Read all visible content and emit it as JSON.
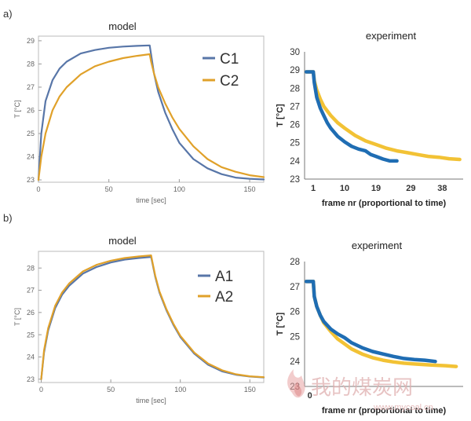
{
  "figure": {
    "panel_a_label": "a)",
    "panel_b_label": "b)",
    "watermark_text": "我的煤炭网",
    "watermark_url": "www.mycoal.cn"
  },
  "colors": {
    "blue_model": "#5876a8",
    "orange_model": "#e0a12a",
    "blue_exp": "#1f6db3",
    "orange_exp": "#f2c235",
    "axis": "#9a9a9a",
    "text": "#333333"
  },
  "chart_data": [
    {
      "id": "a_model",
      "type": "line",
      "title": "model",
      "xlabel": "time [sec]",
      "ylabel": "T [°C]",
      "xlim": [
        0,
        160
      ],
      "ylim": [
        22.9,
        29.2
      ],
      "xticks": [
        0,
        50,
        100,
        150
      ],
      "yticks": [
        23,
        24,
        25,
        26,
        27,
        28,
        29
      ],
      "series": [
        {
          "name": "C1",
          "color": "blue_model",
          "x": [
            0,
            2,
            5,
            10,
            15,
            20,
            30,
            40,
            50,
            60,
            70,
            79,
            80,
            82,
            85,
            90,
            95,
            100,
            110,
            120,
            130,
            140,
            150,
            160
          ],
          "y": [
            23.0,
            25.0,
            26.4,
            27.3,
            27.8,
            28.1,
            28.45,
            28.6,
            28.7,
            28.75,
            28.78,
            28.8,
            28.4,
            27.6,
            26.8,
            25.9,
            25.2,
            24.6,
            23.9,
            23.5,
            23.25,
            23.1,
            23.05,
            23.02
          ]
        },
        {
          "name": "C2",
          "color": "orange_model",
          "x": [
            0,
            2,
            5,
            10,
            15,
            20,
            30,
            40,
            50,
            60,
            70,
            79,
            80,
            82,
            85,
            90,
            95,
            100,
            110,
            120,
            130,
            140,
            150,
            160
          ],
          "y": [
            23.0,
            24.0,
            25.0,
            26.0,
            26.6,
            27.0,
            27.55,
            27.9,
            28.1,
            28.25,
            28.35,
            28.42,
            28.1,
            27.6,
            27.0,
            26.3,
            25.7,
            25.2,
            24.45,
            23.9,
            23.55,
            23.35,
            23.2,
            23.12
          ]
        }
      ]
    },
    {
      "id": "a_exp",
      "type": "line",
      "title": "experiment",
      "xlabel": "frame nr (proportional to time)",
      "ylabel": "T [°C]",
      "xlim": [
        -1.5,
        44
      ],
      "ylim": [
        23,
        30
      ],
      "xticks": [
        1,
        10,
        19,
        29,
        38
      ],
      "yticks": [
        23,
        24,
        25,
        26,
        27,
        28,
        29,
        30
      ],
      "series": [
        {
          "name": "C1",
          "color": "blue_exp",
          "x": [
            -1,
            0,
            1,
            1.3,
            2,
            3,
            4,
            5,
            6,
            8,
            10,
            12,
            14,
            16,
            17.5,
            19,
            21,
            23,
            25
          ],
          "y": [
            28.9,
            28.9,
            28.9,
            28.3,
            27.5,
            26.9,
            26.5,
            26.1,
            25.8,
            25.35,
            25.05,
            24.8,
            24.65,
            24.55,
            24.35,
            24.25,
            24.1,
            24.0,
            24.0
          ]
        },
        {
          "name": "C2",
          "color": "orange_exp",
          "x": [
            -1,
            0,
            1,
            1.3,
            2,
            3,
            4,
            6,
            8,
            10,
            13,
            16,
            19,
            22,
            25,
            28,
            31,
            34,
            37,
            40,
            43
          ],
          "y": [
            28.9,
            28.9,
            28.9,
            28.4,
            27.9,
            27.4,
            27.0,
            26.5,
            26.1,
            25.8,
            25.4,
            25.1,
            24.9,
            24.7,
            24.55,
            24.45,
            24.35,
            24.25,
            24.2,
            24.12,
            24.08
          ]
        }
      ]
    },
    {
      "id": "b_model",
      "type": "line",
      "title": "model",
      "xlabel": "time [sec]",
      "ylabel": "T [°C]",
      "xlim": [
        -2,
        160
      ],
      "ylim": [
        22.85,
        28.75
      ],
      "xticks": [
        0,
        50,
        100,
        150
      ],
      "yticks": [
        23,
        24,
        25,
        26,
        27,
        28
      ],
      "series": [
        {
          "name": "A1",
          "color": "blue_model",
          "x": [
            0,
            2,
            5,
            10,
            15,
            20,
            30,
            40,
            50,
            60,
            70,
            79,
            80,
            82,
            85,
            90,
            95,
            100,
            110,
            120,
            130,
            140,
            150,
            160
          ],
          "y": [
            23.0,
            24.2,
            25.2,
            26.2,
            26.8,
            27.2,
            27.75,
            28.05,
            28.25,
            28.38,
            28.45,
            28.5,
            28.2,
            27.6,
            26.9,
            26.1,
            25.45,
            24.9,
            24.15,
            23.65,
            23.35,
            23.2,
            23.12,
            23.08
          ]
        },
        {
          "name": "A2",
          "color": "orange_model",
          "x": [
            0,
            2,
            5,
            10,
            15,
            20,
            30,
            40,
            50,
            60,
            70,
            79,
            80,
            82,
            85,
            90,
            95,
            100,
            110,
            120,
            130,
            140,
            150,
            160
          ],
          "y": [
            23.0,
            24.3,
            25.3,
            26.3,
            26.9,
            27.3,
            27.85,
            28.15,
            28.33,
            28.45,
            28.52,
            28.57,
            28.25,
            27.65,
            26.95,
            26.15,
            25.5,
            24.95,
            24.2,
            23.7,
            23.4,
            23.22,
            23.13,
            23.09
          ]
        }
      ]
    },
    {
      "id": "b_exp",
      "type": "line",
      "title": "experiment",
      "xlabel": "frame nr (proportional to time)",
      "ylabel": "T [°C]",
      "xlim": [
        -1.5,
        44
      ],
      "ylim": [
        23,
        28
      ],
      "xticks": [
        0
      ],
      "yticks": [
        23,
        24,
        25,
        26,
        27,
        28
      ],
      "series": [
        {
          "name": "A1",
          "color": "blue_exp",
          "x": [
            -1,
            0,
            1,
            1.3,
            2,
            3,
            4,
            6,
            8,
            10,
            12,
            15,
            18,
            21,
            24,
            27,
            30,
            33,
            36
          ],
          "y": [
            27.2,
            27.2,
            27.2,
            26.6,
            26.2,
            25.85,
            25.6,
            25.3,
            25.1,
            24.95,
            24.75,
            24.55,
            24.4,
            24.3,
            24.2,
            24.12,
            24.08,
            24.05,
            24.0
          ]
        },
        {
          "name": "A2",
          "color": "orange_exp",
          "x": [
            -1,
            0,
            1,
            1.3,
            2,
            3,
            4,
            6,
            8,
            10,
            12,
            15,
            18,
            21,
            24,
            27,
            30,
            33,
            36,
            39,
            42
          ],
          "y": [
            27.2,
            27.2,
            27.2,
            26.6,
            26.2,
            25.85,
            25.55,
            25.2,
            24.9,
            24.7,
            24.5,
            24.3,
            24.15,
            24.05,
            23.98,
            23.93,
            23.9,
            23.87,
            23.85,
            23.83,
            23.8
          ]
        }
      ]
    }
  ]
}
